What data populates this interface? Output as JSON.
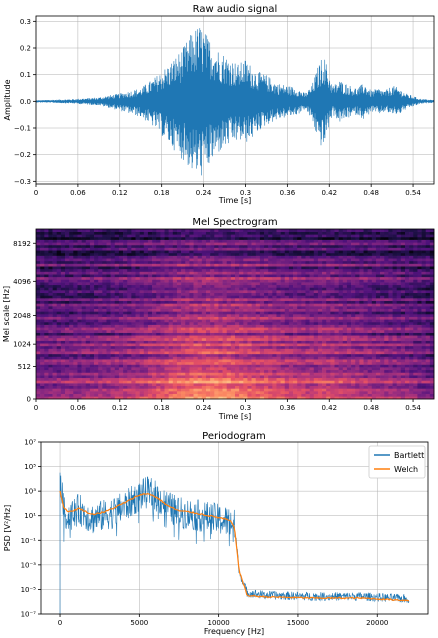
{
  "colors": {
    "audio": "#1f77b4",
    "bartlett": "#1f77b4",
    "welch": "#ff7f0e",
    "grid": "#b0b0b0"
  },
  "chart_data": [
    {
      "type": "line",
      "title": "Raw audio signal",
      "xlabel": "Time [s]",
      "ylabel": "Amplitude",
      "xlim": [
        0,
        0.57
      ],
      "ylim": [
        -0.31,
        0.32
      ],
      "xticks": [
        0,
        0.06,
        0.12,
        0.18,
        0.24,
        0.3,
        0.36,
        0.42,
        0.48,
        0.54
      ],
      "xtick_labels": [
        "0",
        "0.06",
        "0.12",
        "0.18",
        "0.24",
        "0.3",
        "0.36",
        "0.42",
        "0.48",
        "0.54"
      ],
      "yticks": [
        -0.3,
        -0.2,
        -0.1,
        0.0,
        0.1,
        0.2,
        0.3
      ],
      "ytick_labels": [
        "−0.3",
        "−0.2",
        "−0.1",
        "0.0",
        "0.1",
        "0.2",
        "0.3"
      ],
      "grid": true,
      "envelope": {
        "x": [
          0,
          0.05,
          0.09,
          0.12,
          0.15,
          0.17,
          0.19,
          0.21,
          0.225,
          0.235,
          0.245,
          0.26,
          0.275,
          0.29,
          0.3,
          0.31,
          0.32,
          0.33,
          0.345,
          0.36,
          0.375,
          0.385,
          0.395,
          0.405,
          0.412,
          0.418,
          0.425,
          0.435,
          0.45,
          0.46,
          0.47,
          0.48,
          0.49,
          0.5,
          0.51,
          0.52,
          0.53,
          0.54,
          0.55,
          0.57
        ],
        "upper": [
          0.004,
          0.008,
          0.015,
          0.03,
          0.05,
          0.09,
          0.14,
          0.2,
          0.27,
          0.29,
          0.25,
          0.2,
          0.17,
          0.14,
          0.16,
          0.13,
          0.11,
          0.1,
          0.07,
          0.06,
          0.05,
          0.03,
          0.06,
          0.14,
          0.18,
          0.12,
          0.06,
          0.08,
          0.06,
          0.05,
          0.07,
          0.04,
          0.05,
          0.04,
          0.06,
          0.05,
          0.03,
          0.02,
          0.01,
          0.005
        ],
        "lower": [
          -0.004,
          -0.008,
          -0.015,
          -0.035,
          -0.06,
          -0.1,
          -0.16,
          -0.22,
          -0.27,
          -0.29,
          -0.26,
          -0.2,
          -0.17,
          -0.15,
          -0.16,
          -0.14,
          -0.11,
          -0.09,
          -0.07,
          -0.06,
          -0.05,
          -0.03,
          -0.07,
          -0.16,
          -0.18,
          -0.11,
          -0.05,
          -0.08,
          -0.06,
          -0.05,
          -0.07,
          -0.04,
          -0.05,
          -0.04,
          -0.05,
          -0.05,
          -0.03,
          -0.02,
          -0.01,
          -0.005
        ]
      }
    },
    {
      "type": "heatmap",
      "title": "Mel Spectrogram",
      "xlabel": "Time [s]",
      "ylabel": "Mel scale [Hz]",
      "xlim": [
        0,
        0.57
      ],
      "xticks": [
        0,
        0.06,
        0.12,
        0.18,
        0.24,
        0.3,
        0.36,
        0.42,
        0.48,
        0.54
      ],
      "xtick_labels": [
        "0",
        "0.06",
        "0.12",
        "0.18",
        "0.24",
        "0.3",
        "0.36",
        "0.42",
        "0.48",
        "0.54"
      ],
      "ytick_labels": [
        "0",
        "512",
        "1024",
        "2048",
        "4096",
        "8192"
      ],
      "ytick_mel": [
        0,
        594,
        1000,
        1522,
        2146,
        2840
      ],
      "ymax_mel": 3100,
      "colormap": "magma",
      "time_profile": {
        "x": [
          0,
          0.05,
          0.1,
          0.15,
          0.18,
          0.21,
          0.24,
          0.27,
          0.3,
          0.33,
          0.36,
          0.39,
          0.42,
          0.45,
          0.48,
          0.51,
          0.54,
          0.57
        ],
        "level": [
          0.35,
          0.4,
          0.45,
          0.55,
          0.65,
          0.75,
          0.8,
          0.78,
          0.72,
          0.68,
          0.6,
          0.55,
          0.6,
          0.52,
          0.48,
          0.45,
          0.38,
          0.3
        ]
      },
      "freq_profile": {
        "mel": [
          0,
          200,
          400,
          600,
          800,
          1000,
          1300,
          1600,
          2000,
          2300,
          2600,
          2900,
          3100
        ],
        "level": [
          0.95,
          0.9,
          0.78,
          0.65,
          0.62,
          0.6,
          0.55,
          0.52,
          0.5,
          0.42,
          0.32,
          0.22,
          0.15
        ]
      }
    },
    {
      "type": "line",
      "title": "Periodogram",
      "xlabel": "Frequency [Hz]",
      "ylabel": "PSD [V²/Hz]",
      "yscale": "log",
      "xlim": [
        -1200,
        23200
      ],
      "ylim_exp": [
        -7,
        7
      ],
      "xticks": [
        0,
        5000,
        10000,
        15000,
        20000
      ],
      "xtick_labels": [
        "0",
        "5000",
        "10000",
        "15000",
        "20000"
      ],
      "ytick_exps": [
        -7,
        -5,
        -3,
        -1,
        1,
        3,
        5,
        7
      ],
      "ytick_labels": [
        "10⁻⁷",
        "10⁻⁵",
        "10⁻³",
        "10⁻¹",
        "10¹",
        "10³",
        "10⁵",
        "10⁷"
      ],
      "grid": true,
      "legend": {
        "position": "top-right",
        "entries": [
          "Bartlett",
          "Welch"
        ]
      },
      "series": [
        {
          "name": "Bartlett",
          "x": [
            0,
            250,
            600,
            1200,
            2000,
            2800,
            3500,
            4300,
            5000,
            5600,
            6200,
            6800,
            7500,
            8200,
            9000,
            9800,
            10500,
            10800,
            11000,
            11300,
            11800,
            13000,
            16000,
            19000,
            22000
          ],
          "y_exp": [
            4.5,
            1.5,
            1.2,
            1.8,
            1.0,
            1.3,
            1.6,
            2.2,
            2.9,
            3.2,
            2.7,
            2.0,
            1.5,
            1.4,
            1.2,
            1.0,
            0.8,
            0.7,
            0.5,
            -3.5,
            -5.2,
            -5.4,
            -5.5,
            -5.5,
            -5.7
          ],
          "spread": 1.3
        },
        {
          "name": "Welch",
          "x": [
            0,
            250,
            600,
            1200,
            2000,
            2800,
            3500,
            4300,
            5000,
            5600,
            6200,
            6800,
            7500,
            8200,
            9000,
            9800,
            10500,
            10800,
            11000,
            11300,
            11800,
            13000,
            16000,
            19000,
            22000
          ],
          "y_exp": [
            3.0,
            1.6,
            1.3,
            1.6,
            1.1,
            1.3,
            1.7,
            2.2,
            2.7,
            2.8,
            2.4,
            1.8,
            1.4,
            1.3,
            1.1,
            0.9,
            0.7,
            0.5,
            0.0,
            -3.5,
            -5.5,
            -5.6,
            -5.7,
            -5.7,
            -5.9
          ]
        }
      ]
    }
  ]
}
